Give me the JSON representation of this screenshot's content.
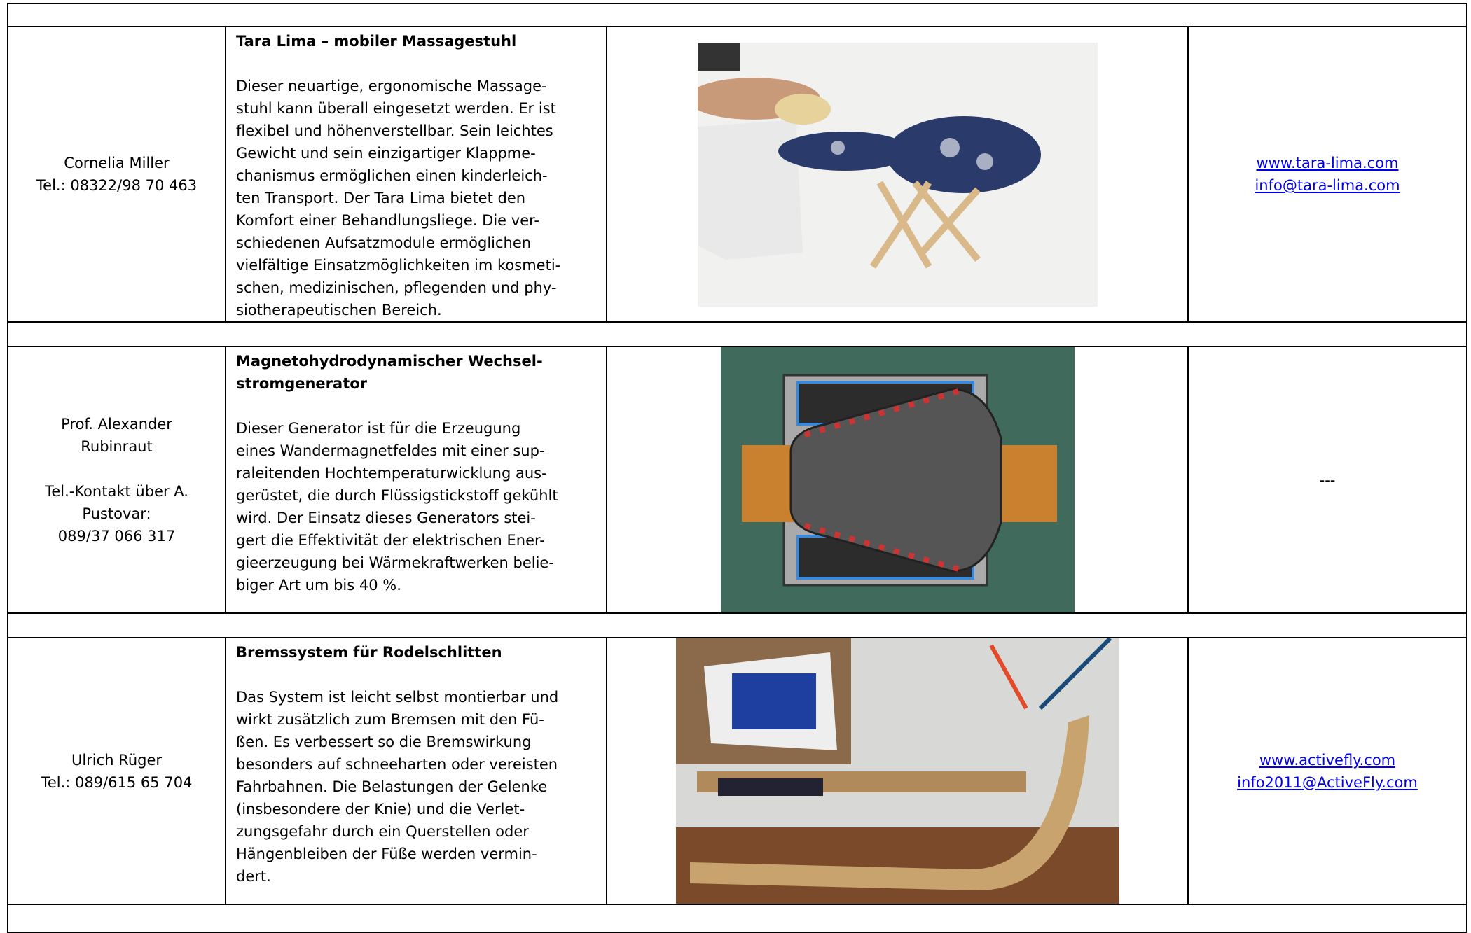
{
  "rows": [
    {
      "contact": [
        [
          "Cornelia Miller",
          "Tel.: 08322/98 70 463"
        ]
      ],
      "title": [
        "Tara Lima – mobiler Massagestuhl"
      ],
      "description": [
        "Dieser neuartige, ergonomische Massage-",
        "stuhl kann überall eingesetzt werden. Er ist",
        "flexibel und höhenverstellbar. Sein leichtes",
        "Gewicht und sein einzigartiger Klappme-",
        "chanismus ermöglichen einen kinderleich-",
        "ten Transport. Der Tara Lima bietet den",
        "Komfort einer Behandlungsliege. Die ver-",
        "schiedenen Aufsatzmodule ermöglichen",
        "vielfältige Einsatzmöglichkeiten im kosmeti-",
        "schen, medizinischen, pflegenden und phy-",
        "siotherapeutischen Bereich."
      ],
      "links": [
        "www.tara-lima.com",
        "info@tara-lima.com"
      ]
    },
    {
      "contact": [
        [
          "Prof. Alexander",
          "Rubinraut"
        ],
        [
          "Tel.-Kontakt über A.",
          "Pustovar:",
          "089/37 066 317"
        ]
      ],
      "title": [
        "Magnetohydrodynamischer Wechsel-",
        "stromgenerator"
      ],
      "description": [
        "Dieser Generator ist für die Erzeugung",
        "eines Wandermagnetfeldes mit einer sup-",
        "raleitenden Hochtemperaturwicklung aus-",
        "gerüstet, die durch Flüssigstickstoff gekühlt",
        "wird. Der Einsatz dieses Generators stei-",
        "gert die Effektivität der elektrischen Ener-",
        "gieerzeugung bei Wärmekraftwerken belie-",
        "biger Art um bis 40 %."
      ],
      "links": [
        "---"
      ]
    },
    {
      "contact": [
        [
          "Ulrich Rüger",
          "Tel.: 089/615 65 704"
        ]
      ],
      "title": [
        "Bremssystem für Rodelschlitten"
      ],
      "description": [
        "Das System ist leicht selbst montierbar und",
        "wirkt zusätzlich zum Bremsen mit den Fü-",
        "ßen. Es verbessert so die Bremswirkung",
        "besonders auf schneeharten oder vereisten",
        "Fahrbahnen. Die Belastungen der Gelenke",
        "(insbesondere der Knie) und die Verlet-",
        "zungsgefahr durch ein Querstellen oder",
        "Hängenbleiben der Füße werden vermin-",
        "dert."
      ],
      "links": [
        "www.activefly.com",
        "info2011@ActiveFly.com"
      ]
    }
  ]
}
